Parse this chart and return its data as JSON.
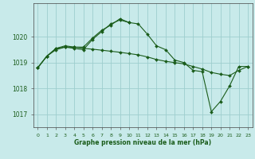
{
  "background_color": "#c8eaea",
  "grid_color": "#9ecece",
  "line_color": "#1a5c1a",
  "marker_color": "#1a5c1a",
  "title": "Graphe pression niveau de la mer (hPa)",
  "xlim": [
    -0.5,
    23.5
  ],
  "ylim": [
    1016.5,
    1021.3
  ],
  "yticks": [
    1017,
    1018,
    1019,
    1020
  ],
  "xtick_labels": [
    "0",
    "1",
    "2",
    "3",
    "4",
    "5",
    "6",
    "7",
    "8",
    "9",
    "10",
    "11",
    "12",
    "13",
    "14",
    "15",
    "16",
    "17",
    "18",
    "19",
    "20",
    "21",
    "22",
    "23"
  ],
  "series1_x": [
    0,
    1,
    2,
    3,
    4,
    5,
    6,
    7,
    8,
    9,
    10,
    11,
    12,
    13,
    14,
    15,
    16,
    17,
    18,
    19,
    20,
    21,
    22,
    23
  ],
  "series1_y": [
    1018.8,
    1019.25,
    1019.5,
    1019.6,
    1019.55,
    1019.5,
    1019.9,
    1020.2,
    1020.5,
    1020.65,
    1020.55,
    1020.5,
    1020.1,
    1019.65,
    1019.5,
    1019.1,
    1019.0,
    1018.7,
    1018.65,
    1017.1,
    1017.5,
    1018.1,
    1018.85,
    1018.85
  ],
  "series2_x": [
    0,
    1,
    2,
    3,
    4,
    5,
    6,
    7,
    8,
    9,
    10
  ],
  "series2_y": [
    1018.8,
    1019.25,
    1019.55,
    1019.65,
    1019.6,
    1019.6,
    1019.95,
    1020.25,
    1020.45,
    1020.7,
    1020.55
  ],
  "series3_x": [
    0,
    1,
    2,
    3,
    4,
    5,
    6,
    7,
    8,
    9,
    10,
    11,
    12,
    13,
    14,
    15,
    16,
    17,
    18,
    19,
    20,
    21,
    22,
    23
  ],
  "series3_y": [
    1018.8,
    1019.25,
    1019.55,
    1019.6,
    1019.6,
    1019.55,
    1019.52,
    1019.48,
    1019.44,
    1019.4,
    1019.35,
    1019.3,
    1019.22,
    1019.12,
    1019.05,
    1019.0,
    1018.95,
    1018.85,
    1018.75,
    1018.62,
    1018.55,
    1018.5,
    1018.7,
    1018.85
  ]
}
